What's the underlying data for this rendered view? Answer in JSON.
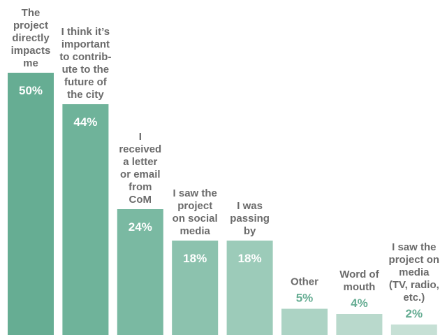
{
  "chart_data": {
    "type": "bar",
    "title": "",
    "xlabel": "",
    "ylabel": "",
    "ylim": [
      0,
      50
    ],
    "categories": [
      "The project directly impacts me",
      "I think it’s important to contribute to the future of the city",
      "I received a letter or email from CoM",
      "I saw the project on social media",
      "I was passing by",
      "Other",
      "Word of mouth",
      "I saw the project on media (TV, radio, etc.)"
    ],
    "category_label_lines": [
      [
        "The",
        "project",
        "directly",
        "impacts",
        "me"
      ],
      [
        "I think it’s",
        "important",
        "to contrib-",
        "ute to the",
        "future of",
        "the city"
      ],
      [
        "I",
        "received",
        "a letter",
        "or email",
        "from",
        "CoM"
      ],
      [
        "I saw the",
        "project",
        "on social",
        "media"
      ],
      [
        "I was",
        "passing",
        "by"
      ],
      [
        "Other"
      ],
      [
        "Word of",
        "mouth"
      ],
      [
        "I saw the",
        "project on",
        "media",
        "(TV, radio,",
        "etc.)"
      ]
    ],
    "values": [
      50,
      44,
      24,
      18,
      18,
      5,
      4,
      2
    ],
    "value_labels": [
      "50%",
      "44%",
      "24%",
      "18%",
      "18%",
      "5%",
      "4%",
      "2%"
    ],
    "colors": [
      "#66ad93",
      "#6fb39a",
      "#7ab9a2",
      "#8cc2ae",
      "#9ccbb9",
      "#acd3c4",
      "#b9d9cc",
      "#c6e0d5"
    ],
    "value_text_colors": [
      "#ffffff",
      "#ffffff",
      "#ffffff",
      "#ffffff",
      "#ffffff",
      "#66ad93",
      "#66ad93",
      "#66ad93"
    ],
    "grid": false,
    "legend": "none"
  }
}
